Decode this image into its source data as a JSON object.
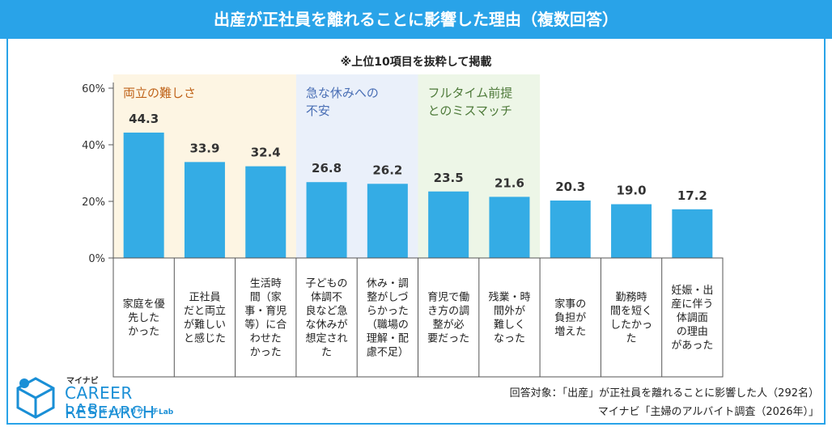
{
  "title": "出産が正社員を離れることに影響した理由（複数回答）",
  "subtitle": "※上位10項目を抜粋して掲載",
  "colors": {
    "bar": "#34ace5",
    "accent": "#29a3e8",
    "group1_bg": "#fdf5e3",
    "group2_bg": "#eaf0fa",
    "group3_bg": "#edf6e7",
    "group1_text": "#c0641a",
    "group2_text": "#4a6fb5",
    "group3_text": "#4e7a3a"
  },
  "chart_data": {
    "type": "bar",
    "ylim": [
      0,
      60
    ],
    "yticks": [
      "0%",
      "20%",
      "40%",
      "60%"
    ],
    "groups": [
      {
        "label_lines": [
          "両立の難しさ"
        ],
        "start": 0,
        "end": 2
      },
      {
        "label_lines": [
          "急な休みへの",
          "不安"
        ],
        "start": 3,
        "end": 4
      },
      {
        "label_lines": [
          "フルタイム前提",
          "とのミスマッチ"
        ],
        "start": 5,
        "end": 6
      }
    ],
    "categories": [
      [
        "家庭を優",
        "先した",
        "かった"
      ],
      [
        "正社員",
        "だと両立",
        "が難しい",
        "と感じた"
      ],
      [
        "生活時",
        "間（家",
        "事・育児",
        "等）に合",
        "わせた",
        "かった"
      ],
      [
        "子どもの",
        "体調不",
        "良など急",
        "な休みが",
        "想定され",
        "た"
      ],
      [
        "休み・調",
        "整がしづ",
        "らかった",
        "（職場の",
        "理解・配",
        "慮不足）"
      ],
      [
        "育児で働",
        "き方の調",
        "整が必",
        "要だった"
      ],
      [
        "残業・時",
        "間外が",
        "難しく",
        "なった"
      ],
      [
        "家事の",
        "負担が",
        "増えた"
      ],
      [
        "勤務時",
        "間を短く",
        "したかっ",
        "た"
      ],
      [
        "妊娠・出",
        "産に伴う",
        "体調面",
        "の理由",
        "があった"
      ]
    ],
    "values": [
      44.3,
      33.9,
      32.4,
      26.8,
      26.2,
      23.5,
      21.6,
      20.3,
      19.0,
      17.2
    ],
    "value_labels": [
      "44.3",
      "33.9",
      "32.4",
      "26.8",
      "26.2",
      "23.5",
      "21.6",
      "20.3",
      "19.0",
      "17.2"
    ]
  },
  "footnote": {
    "target": "回答対象：「出産」が正社員を離れることに影響した人（292名）",
    "source": "マイナビ「主婦のアルバイト調査（2026年）」"
  },
  "logo": {
    "small": "マイナビ",
    "main": "CAREER RESEARCH",
    "lab": "LAB",
    "kana": "キャリアリサーチLab"
  }
}
